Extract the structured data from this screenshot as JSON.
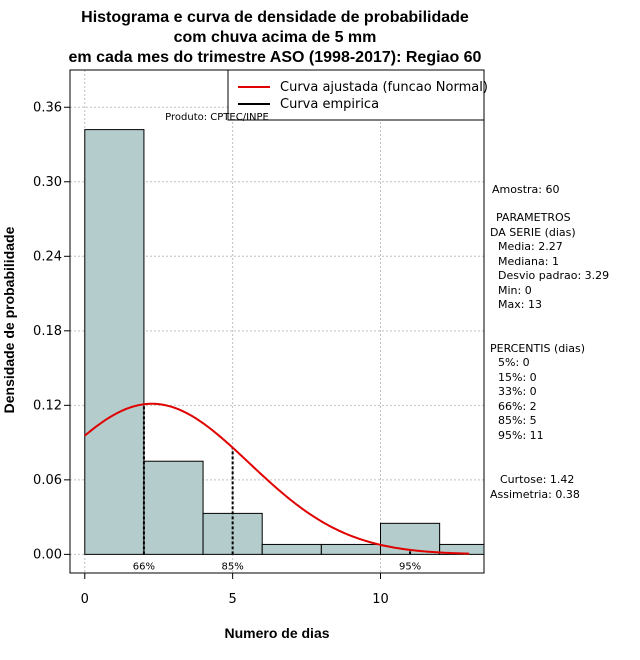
{
  "chart_data": {
    "type": "bar",
    "title_lines": [
      "Histograma e curva de densidade de probabilidade",
      "com chuva acima de 5 mm",
      "em cada mes do trimestre ASO (1998-2017): Regiao 60"
    ],
    "xlabel": "Numero de dias",
    "ylabel": "Densidade de probabilidade",
    "xlim": [
      -0.5,
      13.5
    ],
    "ylim": [
      -0.015,
      0.39
    ],
    "x_ticks": [
      0,
      5,
      10
    ],
    "y_ticks": [
      0.0,
      0.06,
      0.12,
      0.18,
      0.24,
      0.3,
      0.36
    ],
    "y_tick_labels": [
      "0.00",
      "0.06",
      "0.12",
      "0.18",
      "0.24",
      "0.30",
      "0.36"
    ],
    "grid": true,
    "bins": [
      {
        "from": 0,
        "to": 2,
        "density": 0.342
      },
      {
        "from": 2,
        "to": 4,
        "density": 0.075
      },
      {
        "from": 4,
        "to": 6,
        "density": 0.033
      },
      {
        "from": 6,
        "to": 8,
        "density": 0.008
      },
      {
        "from": 8,
        "to": 10,
        "density": 0.008
      },
      {
        "from": 10,
        "to": 12,
        "density": 0.025
      },
      {
        "from": 12,
        "to": 14,
        "density": 0.008
      }
    ],
    "bar_color": "#b5cccc",
    "normal_curve": {
      "mean": 2.27,
      "sd": 3.29,
      "color": "#e00000",
      "x_from": 0,
      "x_to": 13
    },
    "percentile_lines": [
      {
        "x": 2,
        "label": "66%"
      },
      {
        "x": 5,
        "label": "85%"
      },
      {
        "x": 11,
        "label": "95%"
      }
    ],
    "legend": [
      {
        "label": "Curva ajustada (funcao Normal)",
        "color": "#e00000"
      },
      {
        "label": "Curva empirica",
        "color": "#000000"
      }
    ],
    "product_label": "Produto: CPTEC/INPE"
  },
  "stats_panel": {
    "sample": "Amostra: 60",
    "params_title_1": "PARAMETROS",
    "params_title_2": "DA SERIE (dias)",
    "media": "Media: 2.27",
    "mediana": "Mediana: 1",
    "desvio": "Desvio padrao: 3.29",
    "min": "Min: 0",
    "max": "Max: 13",
    "percentis_title": "PERCENTIS (dias)",
    "p5": "5%: 0",
    "p15": "15%: 0",
    "p33": "33%: 0",
    "p66": "66%: 2",
    "p85": "85%: 5",
    "p95": "95%: 11",
    "curtose": "Curtose: 1.42",
    "assimetria": "Assimetria: 0.38"
  }
}
